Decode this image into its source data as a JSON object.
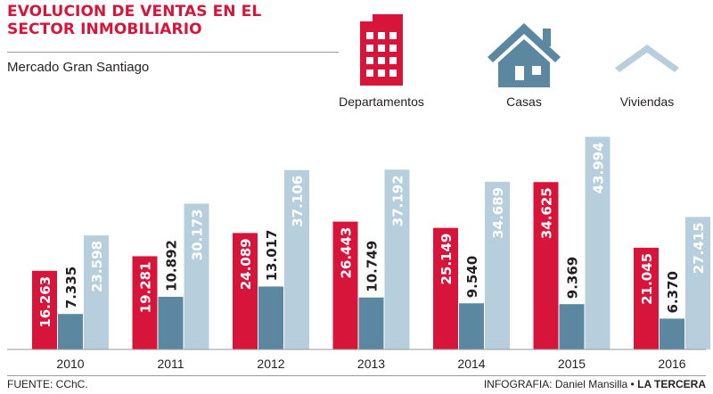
{
  "header": {
    "title": "EVOLUCION DE VENTAS EN EL SECTOR INMOBILIARIO",
    "subtitle": "Mercado Gran Santiago"
  },
  "legend": [
    {
      "label": "Departamentos",
      "icon": "apartment-building-icon",
      "color": "#d7153a"
    },
    {
      "label": "Casas",
      "icon": "house-icon",
      "color": "#5b87a0"
    },
    {
      "label": "Viviendas",
      "icon": "roof-icon",
      "color": "#b7cfdd"
    }
  ],
  "chart_data": {
    "type": "bar",
    "title": "EVOLUCION DE VENTAS EN EL SECTOR INMOBILIARIO",
    "subtitle": "Mercado Gran Santiago",
    "categories": [
      "2010",
      "2011",
      "2012",
      "2013",
      "2014",
      "2015",
      "2016"
    ],
    "series": [
      {
        "name": "Departamentos",
        "color": "#d7153a",
        "values": [
          16263,
          19281,
          24089,
          26443,
          25149,
          34625,
          21045
        ],
        "labels": [
          "16.263",
          "19.281",
          "24.089",
          "26.443",
          "25.149",
          "34.625",
          "21.045"
        ]
      },
      {
        "name": "Casas",
        "color": "#5b87a0",
        "values": [
          7335,
          10892,
          13017,
          10749,
          9540,
          9369,
          6370
        ],
        "labels": [
          "7.335",
          "10.892",
          "13.017",
          "10.749",
          "9.540",
          "9.369",
          "6.370"
        ]
      },
      {
        "name": "Viviendas",
        "color": "#b7cfdd",
        "values": [
          23598,
          30173,
          37106,
          37192,
          34689,
          43994,
          27415
        ],
        "labels": [
          "23.598",
          "30.173",
          "37.106",
          "37.192",
          "34.689",
          "43.994",
          "27.415"
        ]
      }
    ],
    "ylim": [
      0,
      45000
    ],
    "grid": false,
    "legend_position": "top-right"
  },
  "footer": {
    "source": "FUENTE: CChC.",
    "credit_prefix": "INFOGRAFIA: Daniel Mansilla •",
    "credit_brand": "LA TERCERA"
  }
}
